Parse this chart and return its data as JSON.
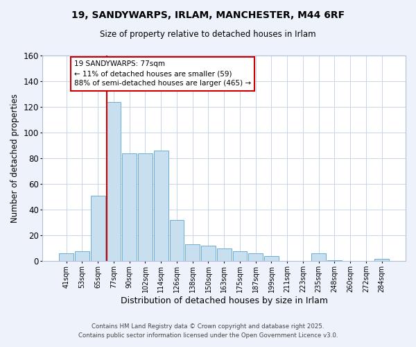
{
  "title": "19, SANDYWARPS, IRLAM, MANCHESTER, M44 6RF",
  "subtitle": "Size of property relative to detached houses in Irlam",
  "xlabel": "Distribution of detached houses by size in Irlam",
  "ylabel": "Number of detached properties",
  "bar_labels": [
    "41sqm",
    "53sqm",
    "65sqm",
    "77sqm",
    "90sqm",
    "102sqm",
    "114sqm",
    "126sqm",
    "138sqm",
    "150sqm",
    "163sqm",
    "175sqm",
    "187sqm",
    "199sqm",
    "211sqm",
    "223sqm",
    "235sqm",
    "248sqm",
    "260sqm",
    "272sqm",
    "284sqm"
  ],
  "bar_values": [
    6,
    8,
    51,
    124,
    84,
    84,
    86,
    32,
    13,
    12,
    10,
    8,
    6,
    4,
    0,
    0,
    6,
    1,
    0,
    0,
    2
  ],
  "bar_color": "#c8dff0",
  "bar_edge_color": "#6aaed6",
  "vline_x_index": 3,
  "vline_color": "#cc0000",
  "annotation_line1": "19 SANDYWARPS: 77sqm",
  "annotation_line2": "← 11% of detached houses are smaller (59)",
  "annotation_line3": "88% of semi-detached houses are larger (465) →",
  "annotation_box_color": "#ffffff",
  "annotation_box_edge_color": "#cc0000",
  "ylim": [
    0,
    160
  ],
  "yticks": [
    0,
    20,
    40,
    60,
    80,
    100,
    120,
    140,
    160
  ],
  "footer_line1": "Contains HM Land Registry data © Crown copyright and database right 2025.",
  "footer_line2": "Contains public sector information licensed under the Open Government Licence v3.0.",
  "bg_color": "#eef2fb",
  "plot_bg_color": "#ffffff",
  "grid_color": "#c8d4e8",
  "title_fontsize": 10,
  "subtitle_fontsize": 8.5
}
